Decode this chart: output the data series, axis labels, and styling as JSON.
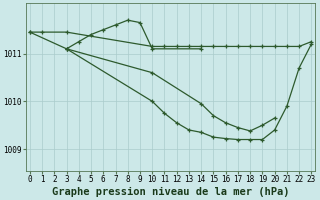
{
  "background_color": "#cce8e8",
  "grid_color": "#aacccc",
  "line_color": "#2d5a2d",
  "title": "Graphe pression niveau de la mer (hPa)",
  "ylabel_ticks": [
    1009,
    1010,
    1011
  ],
  "xlim": [
    -0.3,
    23.3
  ],
  "ylim": [
    1008.55,
    1012.05
  ],
  "series": [
    {
      "x": [
        0,
        1,
        3,
        10,
        11,
        12,
        13,
        14,
        15,
        16,
        17,
        18,
        19,
        20,
        21,
        22,
        23
      ],
      "y": [
        1011.45,
        1011.45,
        1011.45,
        1011.15,
        1011.15,
        1011.15,
        1011.15,
        1011.15,
        1011.15,
        1011.15,
        1011.15,
        1011.15,
        1011.15,
        1011.15,
        1011.15,
        1011.15,
        1011.25
      ]
    },
    {
      "x": [
        0,
        3,
        4,
        5,
        6,
        7,
        8,
        9,
        10,
        14
      ],
      "y": [
        1011.45,
        1011.1,
        1011.25,
        1011.4,
        1011.5,
        1011.6,
        1011.7,
        1011.65,
        1011.1,
        1011.1
      ]
    },
    {
      "x": [
        3,
        10,
        11,
        12,
        13,
        14,
        15,
        16,
        17,
        18,
        19,
        20,
        21,
        22,
        23
      ],
      "y": [
        1011.1,
        1010.0,
        1009.75,
        1009.55,
        1009.4,
        1009.35,
        1009.25,
        1009.22,
        1009.2,
        1009.2,
        1009.2,
        1009.4,
        1009.9,
        1010.7,
        1011.2
      ]
    },
    {
      "x": [
        3,
        10,
        14,
        15,
        16,
        17,
        18,
        19,
        20
      ],
      "y": [
        1011.1,
        1010.6,
        1009.95,
        1009.7,
        1009.55,
        1009.45,
        1009.38,
        1009.5,
        1009.65
      ]
    }
  ],
  "xticks": [
    0,
    1,
    2,
    3,
    4,
    5,
    6,
    7,
    8,
    9,
    10,
    11,
    12,
    13,
    14,
    15,
    16,
    17,
    18,
    19,
    20,
    21,
    22,
    23
  ],
  "title_fontsize": 7.5,
  "tick_fontsize": 5.5
}
